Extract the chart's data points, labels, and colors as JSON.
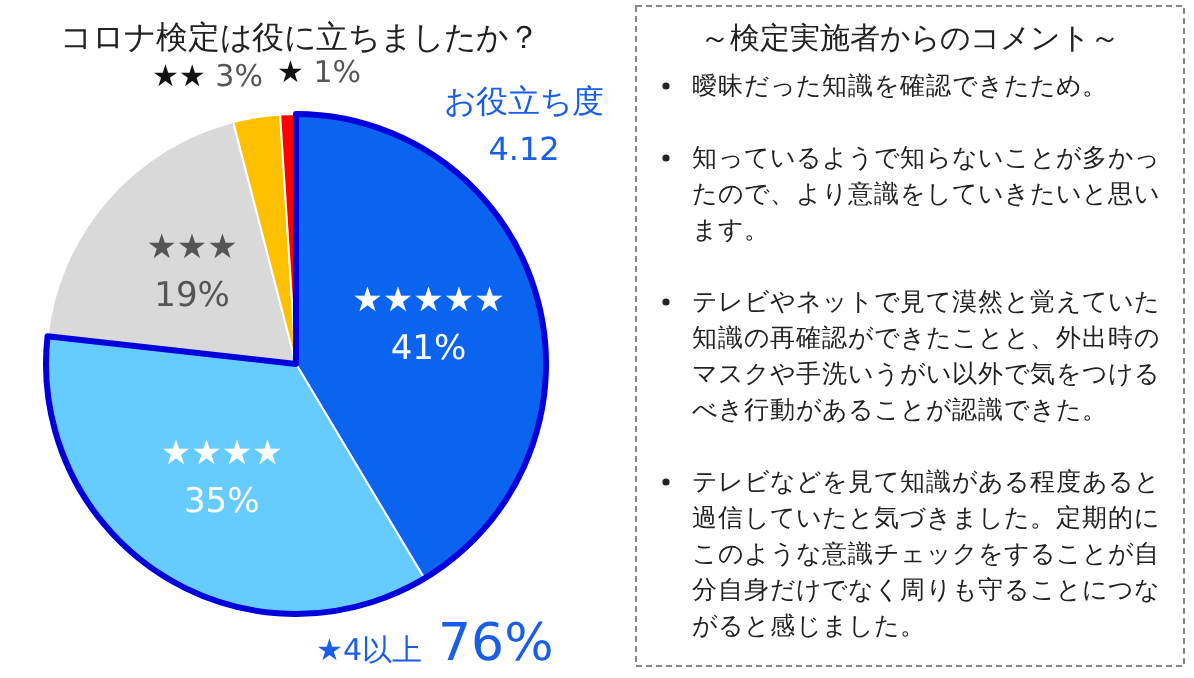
{
  "chart_data": [
    {
      "type": "pie",
      "title": "コロナ検定は役に立ちましたか？",
      "categories": [
        "★★★★★",
        "★★★★",
        "★★★",
        "★★",
        "★"
      ],
      "values": [
        41,
        35,
        19,
        3,
        1
      ],
      "value_labels": [
        "41%",
        "35%",
        "19%",
        "3%",
        "1%"
      ],
      "colors": [
        "#0a64f0",
        "#66ccff",
        "#d9d9d9",
        "#ffc000",
        "#ff0000"
      ],
      "annotations": [
        "お役立ち度\n4.12",
        "★4以上 76%"
      ]
    },
    {
      "type": "other",
      "title": "～検定実施者からのコメント～",
      "annotations": [
        "曖昧だった知識を確認できたため。",
        "知っているようで知らないことが多かったので、より意識をしていきたいと思います。",
        "テレビやネットで見て漠然と覚えていた知識の再確認ができたことと、外出時のマスクや手洗いうがい以外で気をつけるべき行動があることが認識できた。",
        "テレビなどを見て知識がある程度あると過信していたと気づきました。定期的にこのような意識チェックをすることが自分自身だけでなく周りも守ることにつながると感じました。"
      ]
    }
  ]
}
